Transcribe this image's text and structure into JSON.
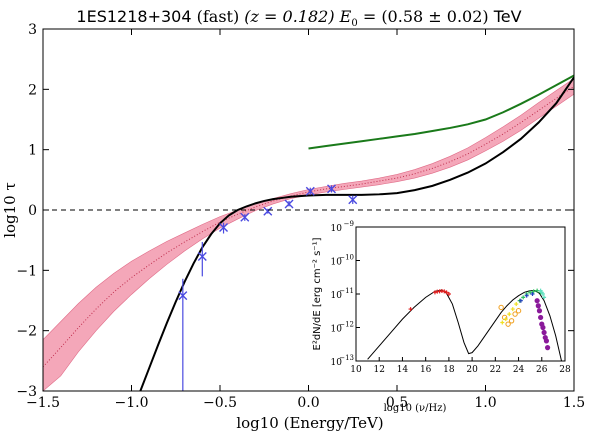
{
  "chart_data": [
    {
      "type": "line",
      "title_parts": [
        "1ES1218+304",
        " (fast) ",
        "(z = 0.182)",
        " E",
        "0",
        " = (0.58 ± 0.02)",
        " TeV"
      ],
      "xlabel": "log10 (Energy/TeV)",
      "ylabel": "log10 τ",
      "xlim": [
        -1.5,
        1.5
      ],
      "ylim": [
        -3,
        3
      ],
      "xticks": [
        "−1.5",
        "−1.0",
        "−0.5",
        "0.0",
        "0.5",
        "1.0",
        "1.5"
      ],
      "yticks": [
        "3",
        "2",
        "1",
        "0",
        "−1",
        "−2",
        "−3"
      ],
      "xtick_values": [
        -1.5,
        -1.0,
        -0.5,
        0.0,
        0.5,
        1.0,
        1.5
      ],
      "ytick_values": [
        3,
        2,
        1,
        0,
        -1,
        -2,
        -3
      ],
      "colors": {
        "band": "#f4a7b9",
        "band_edge": "#e06c88",
        "median": "#c0304f",
        "model": "#000000",
        "green": "#1a7a1a",
        "points": "#4a4ae0",
        "zero_line": "#000000"
      },
      "series": [
        {
          "style": "band",
          "x": [
            -1.5,
            -1.4,
            -1.3,
            -1.2,
            -1.1,
            -1.0,
            -0.9,
            -0.8,
            -0.7,
            -0.6,
            -0.5,
            -0.4,
            -0.3,
            -0.2,
            -0.1,
            0.0,
            0.1,
            0.2,
            0.3,
            0.4,
            0.5,
            0.6,
            0.7,
            0.8,
            0.9,
            1.0,
            1.1,
            1.2,
            1.3,
            1.4,
            1.5
          ],
          "upper": [
            -2.15,
            -1.85,
            -1.55,
            -1.28,
            -1.05,
            -0.85,
            -0.68,
            -0.52,
            -0.38,
            -0.24,
            -0.11,
            0.0,
            0.1,
            0.19,
            0.27,
            0.34,
            0.39,
            0.44,
            0.48,
            0.53,
            0.59,
            0.67,
            0.77,
            0.89,
            1.03,
            1.2,
            1.38,
            1.57,
            1.78,
            1.98,
            2.18
          ],
          "lower": [
            -3.0,
            -2.75,
            -2.35,
            -2.0,
            -1.68,
            -1.4,
            -1.14,
            -0.9,
            -0.68,
            -0.48,
            -0.3,
            -0.15,
            -0.01,
            0.1,
            0.19,
            0.25,
            0.3,
            0.34,
            0.38,
            0.42,
            0.47,
            0.53,
            0.61,
            0.71,
            0.83,
            0.98,
            1.14,
            1.32,
            1.52,
            1.72,
            1.92
          ]
        },
        {
          "style": "dotted-median",
          "x": [
            -1.5,
            -1.4,
            -1.3,
            -1.2,
            -1.1,
            -1.0,
            -0.9,
            -0.8,
            -0.7,
            -0.6,
            -0.5,
            -0.4,
            -0.3,
            -0.2,
            -0.1,
            0.0,
            0.1,
            0.2,
            0.3,
            0.4,
            0.5,
            0.6,
            0.7,
            0.8,
            0.9,
            1.0,
            1.1,
            1.2,
            1.3,
            1.4,
            1.5
          ],
          "y": [
            -2.6,
            -2.28,
            -1.95,
            -1.64,
            -1.36,
            -1.12,
            -0.91,
            -0.71,
            -0.53,
            -0.36,
            -0.2,
            -0.07,
            0.05,
            0.15,
            0.23,
            0.3,
            0.35,
            0.39,
            0.43,
            0.48,
            0.53,
            0.6,
            0.69,
            0.8,
            0.93,
            1.09,
            1.26,
            1.45,
            1.65,
            1.85,
            2.05
          ]
        },
        {
          "style": "solid-black",
          "x": [
            -0.95,
            -0.9,
            -0.85,
            -0.8,
            -0.75,
            -0.7,
            -0.65,
            -0.6,
            -0.55,
            -0.5,
            -0.45,
            -0.4,
            -0.35,
            -0.3,
            -0.25,
            -0.2,
            -0.15,
            -0.1,
            -0.05,
            0.0,
            0.1,
            0.2,
            0.3,
            0.4,
            0.5,
            0.6,
            0.7,
            0.8,
            0.9,
            1.0,
            1.1,
            1.2,
            1.3,
            1.4,
            1.5
          ],
          "y": [
            -3.0,
            -2.62,
            -2.24,
            -1.87,
            -1.52,
            -1.19,
            -0.89,
            -0.62,
            -0.4,
            -0.22,
            -0.09,
            0.0,
            0.06,
            0.11,
            0.15,
            0.18,
            0.2,
            0.22,
            0.23,
            0.24,
            0.25,
            0.25,
            0.25,
            0.26,
            0.28,
            0.33,
            0.4,
            0.5,
            0.62,
            0.77,
            0.96,
            1.18,
            1.45,
            1.77,
            2.2
          ]
        },
        {
          "style": "solid-green",
          "x": [
            0.0,
            0.1,
            0.2,
            0.3,
            0.4,
            0.5,
            0.6,
            0.7,
            0.8,
            0.9,
            1.0,
            1.1,
            1.2,
            1.3,
            1.4,
            1.5
          ],
          "y": [
            1.02,
            1.06,
            1.1,
            1.14,
            1.18,
            1.22,
            1.26,
            1.31,
            1.36,
            1.42,
            1.5,
            1.62,
            1.76,
            1.91,
            2.07,
            2.23
          ]
        },
        {
          "style": "errorbar-points",
          "x": [
            -0.71,
            -0.6,
            -0.48,
            -0.36,
            -0.23,
            -0.11,
            0.01,
            0.13,
            0.25
          ],
          "y": [
            -1.42,
            -0.77,
            -0.29,
            -0.12,
            -0.02,
            0.1,
            0.31,
            0.35,
            0.17
          ],
          "yerr_low": [
            1.58,
            0.33,
            0.1,
            0.06,
            0.04,
            0.04,
            0.06,
            0.06,
            0.07
          ],
          "yerr_high": [
            0.28,
            0.24,
            0.08,
            0.05,
            0.04,
            0.05,
            0.06,
            0.06,
            0.07
          ]
        }
      ],
      "hlines": [
        0
      ]
    },
    {
      "type": "line",
      "title": "",
      "xlabel": "log10 (ν/Hz)",
      "ylabel": "E²dN/dE [erg cm⁻² s⁻¹]",
      "xlim": [
        10,
        28
      ],
      "ylim": [
        -13,
        -9
      ],
      "log_y": true,
      "xticks": [
        "10",
        "12",
        "14",
        "16",
        "18",
        "20",
        "22",
        "24",
        "26",
        "28"
      ],
      "xtick_values": [
        10,
        12,
        14,
        16,
        18,
        20,
        22,
        24,
        26,
        28
      ],
      "yticks": [
        "10",
        "10",
        "10",
        "10",
        "10"
      ],
      "ytick_exponents": [
        "−9",
        "−10",
        "−11",
        "−12",
        "−13"
      ],
      "ytick_values": [
        -9,
        -10,
        -11,
        -12,
        -13
      ],
      "series": [
        {
          "style": "sed-model",
          "x": [
            11.0,
            12.0,
            13.0,
            14.0,
            15.0,
            16.0,
            16.8,
            17.4,
            17.8,
            18.3,
            18.8,
            19.3,
            19.7,
            20.0,
            20.5,
            21.0,
            21.5,
            22.0,
            22.5,
            23.0,
            23.5,
            24.0,
            24.5,
            25.0,
            25.4,
            25.8,
            26.2,
            26.7,
            27.2,
            27.7
          ],
          "y": [
            -12.95,
            -12.55,
            -12.15,
            -11.75,
            -11.4,
            -11.1,
            -10.92,
            -10.88,
            -10.98,
            -11.3,
            -11.85,
            -12.45,
            -12.78,
            -12.75,
            -12.55,
            -12.3,
            -12.05,
            -11.8,
            -11.55,
            -11.35,
            -11.18,
            -11.05,
            -10.95,
            -10.9,
            -10.9,
            -10.98,
            -11.2,
            -11.65,
            -12.25,
            -13.0
          ]
        },
        {
          "style": "points-red",
          "x": [
            14.7,
            16.8,
            17.0,
            17.2,
            17.4,
            17.6,
            17.8,
            18.0
          ],
          "y": [
            -11.45,
            -10.95,
            -10.93,
            -10.92,
            -10.91,
            -10.92,
            -10.95,
            -11.0
          ]
        },
        {
          "style": "points-orange",
          "x": [
            22.5,
            22.8,
            23.1,
            23.4,
            23.7,
            24.0
          ],
          "y": [
            -11.4,
            -11.7,
            -11.9,
            -11.8,
            -11.6,
            -11.5
          ]
        },
        {
          "style": "points-yellow",
          "x": [
            22.6,
            22.9,
            23.2,
            23.5,
            23.8,
            24.1
          ],
          "y": [
            -11.85,
            -11.75,
            -11.6,
            -11.45,
            -11.3,
            -11.2
          ]
        },
        {
          "style": "points-green",
          "x": [
            24.1,
            24.4,
            24.7,
            25.0,
            25.3,
            25.6,
            25.9
          ],
          "y": [
            -11.2,
            -11.1,
            -11.0,
            -10.95,
            -10.92,
            -10.9,
            -10.95
          ]
        },
        {
          "style": "points-cyan",
          "x": [
            25.9,
            26.0,
            26.1,
            26.2
          ],
          "y": [
            -10.9,
            -10.95,
            -11.0,
            -11.1
          ]
        },
        {
          "style": "points-purple",
          "x": [
            25.6,
            25.7,
            25.8,
            25.9,
            26.0,
            26.1,
            26.2,
            26.3,
            26.4,
            26.5
          ],
          "y": [
            -11.2,
            -11.35,
            -11.5,
            -11.7,
            -11.9,
            -12.0,
            -12.15,
            -12.3,
            -12.4,
            -12.6
          ]
        },
        {
          "style": "points-blue",
          "x": [
            24.2,
            24.7,
            25.2
          ],
          "y": [
            -11.2,
            -11.05,
            -11.0
          ]
        }
      ]
    }
  ]
}
